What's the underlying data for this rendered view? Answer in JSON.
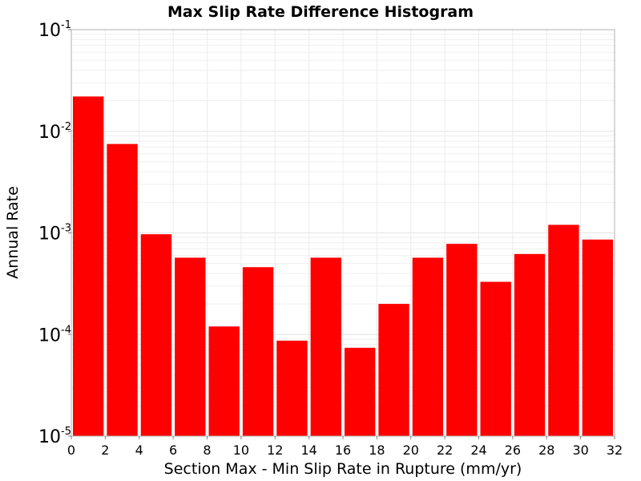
{
  "chart_data": {
    "type": "bar",
    "title": "Max Slip Rate Difference Histogram",
    "xlabel": "Section Max - Min Slip Rate in Rupture (mm/yr)",
    "ylabel": "Annual Rate",
    "y_scale": "log",
    "ylim": [
      1e-05,
      0.1
    ],
    "xlim": [
      0,
      32
    ],
    "grid": true,
    "bar_color": "#ff0000",
    "bin_width": 2,
    "x_ticks": [
      "0",
      "2",
      "4",
      "6",
      "8",
      "10",
      "12",
      "14",
      "16",
      "18",
      "20",
      "22",
      "24",
      "26",
      "28",
      "30",
      "32"
    ],
    "y_ticks": [
      {
        "base": "10",
        "exp": "-5",
        "value": 1e-05
      },
      {
        "base": "10",
        "exp": "-4",
        "value": 0.0001
      },
      {
        "base": "10",
        "exp": "-3",
        "value": 0.001
      },
      {
        "base": "10",
        "exp": "-2",
        "value": 0.01
      },
      {
        "base": "10",
        "exp": "-1",
        "value": 0.1
      }
    ],
    "bins": [
      {
        "start": 0,
        "end": 2,
        "value": 0.022
      },
      {
        "start": 2,
        "end": 4,
        "value": 0.0075
      },
      {
        "start": 4,
        "end": 6,
        "value": 0.00097
      },
      {
        "start": 6,
        "end": 8,
        "value": 0.00057
      },
      {
        "start": 8,
        "end": 10,
        "value": 0.00012
      },
      {
        "start": 10,
        "end": 12,
        "value": 0.00046
      },
      {
        "start": 12,
        "end": 14,
        "value": 8.7e-05
      },
      {
        "start": 14,
        "end": 16,
        "value": 0.00057
      },
      {
        "start": 16,
        "end": 18,
        "value": 7.4e-05
      },
      {
        "start": 18,
        "end": 20,
        "value": 0.0002
      },
      {
        "start": 20,
        "end": 22,
        "value": 0.00057
      },
      {
        "start": 22,
        "end": 24,
        "value": 0.00078
      },
      {
        "start": 24,
        "end": 26,
        "value": 0.00033
      },
      {
        "start": 26,
        "end": 28,
        "value": 0.00062
      },
      {
        "start": 28,
        "end": 30,
        "value": 0.0012
      },
      {
        "start": 30,
        "end": 32,
        "value": 0.00086
      }
    ]
  }
}
